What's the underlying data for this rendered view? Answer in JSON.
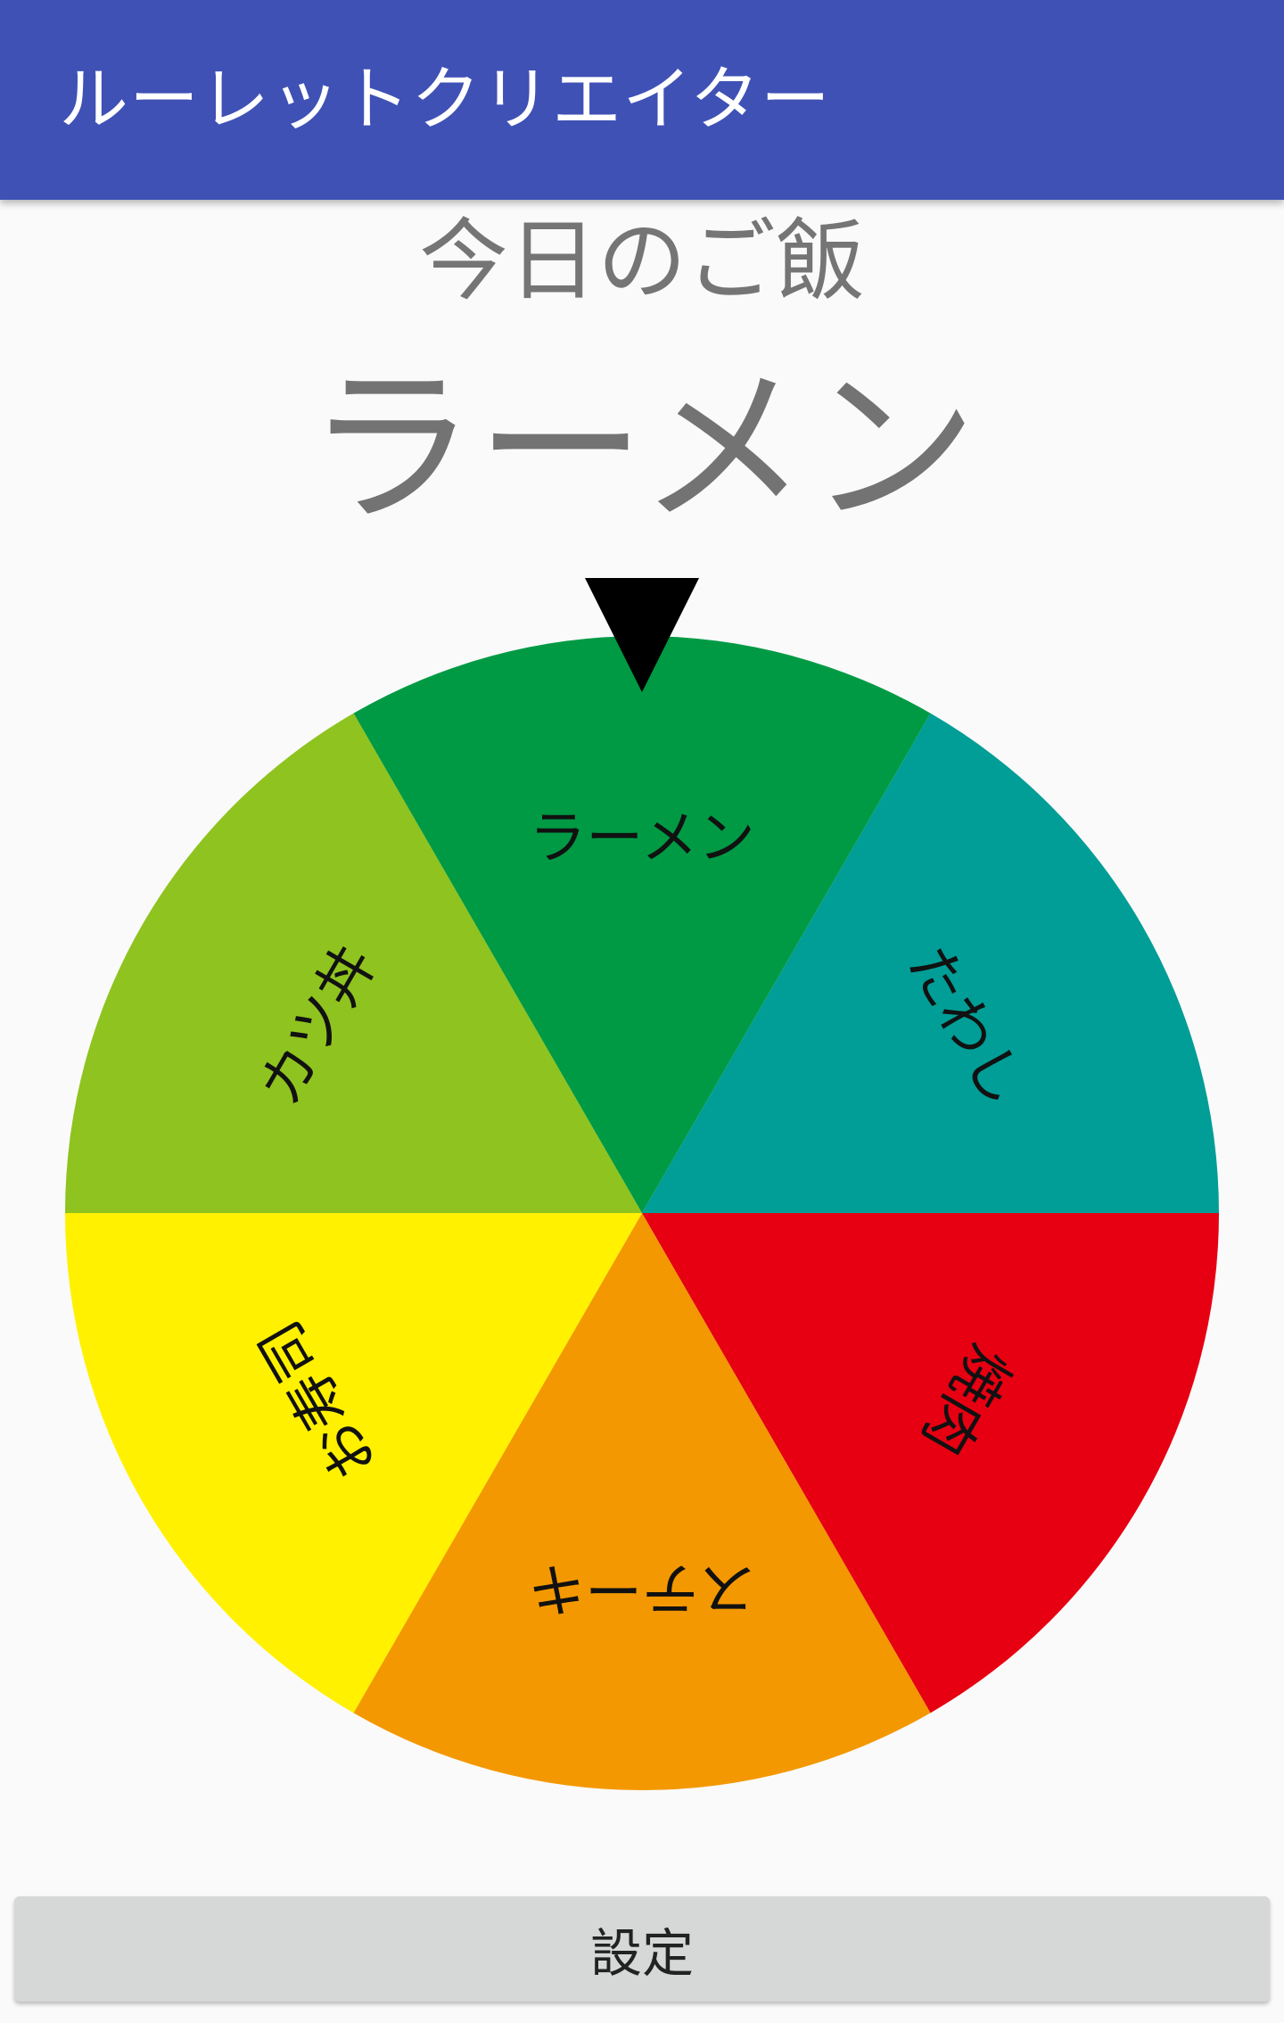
{
  "app": {
    "title": "ルーレットクリエイター"
  },
  "roulette": {
    "title": "今日のご飯",
    "result": "ラーメン",
    "segments": [
      {
        "label": "ラーメン",
        "color": "#009a44"
      },
      {
        "label": "たわし",
        "color": "#009e96"
      },
      {
        "label": "焼肉",
        "color": "#e60012"
      },
      {
        "label": "ステーキ",
        "color": "#f39800"
      },
      {
        "label": "お寿司",
        "color": "#fff100"
      },
      {
        "label": "カツ丼",
        "color": "#8fc31f"
      }
    ],
    "pointer_color": "#000000"
  },
  "footer": {
    "settings_label": "設定"
  }
}
